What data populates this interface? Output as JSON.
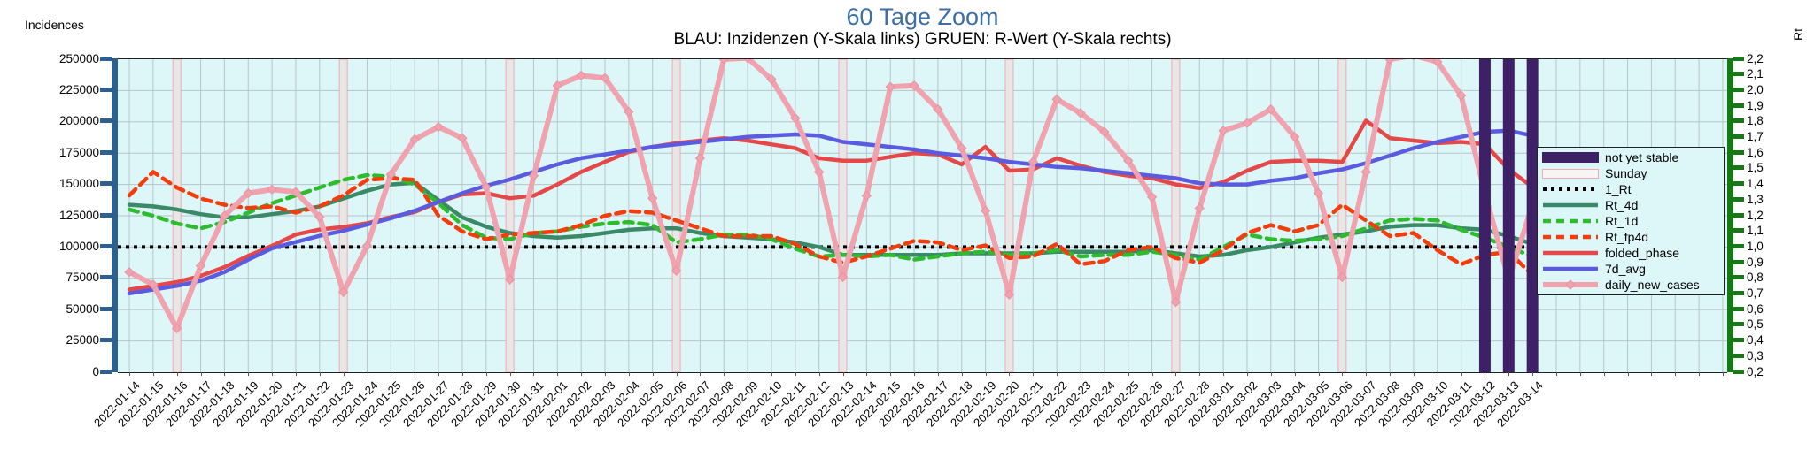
{
  "header": {
    "title": "60 Tage Zoom",
    "subtitle": "BLAU: Inzidenzen (Y-Skala links)    GRUEN: R-Wert (Y-Skala rechts)"
  },
  "colors": {
    "title": "#3c6fa5",
    "plot_bg": "#ddf6f8",
    "grid": "#b6c6ca",
    "left_axis": "#2d5f8f",
    "right_axis": "#157a15",
    "not_yet_stable": "#3e2066",
    "sunday_fill": "#e9e6e6",
    "sunday_border": "#efaab4",
    "one_rt": "#000000",
    "rt_4d": "#3a8a68",
    "rt_1d": "#2ebb2e",
    "rt_fp4d": "#f23d0d",
    "folded_phase": "#e54848",
    "sevend_avg": "#5b5be0",
    "daily_new_cases": "#f0a2ae"
  },
  "axes": {
    "left_title": "Incidences",
    "right_title": "Rt",
    "left_ticks": [
      "0",
      "25000",
      "50000",
      "75000",
      "100000",
      "125000",
      "150000",
      "175000",
      "200000",
      "225000",
      "250000"
    ],
    "right_ticks": [
      "0,2",
      "0,3",
      "0,4",
      "0,5",
      "0,6",
      "0,7",
      "0,8",
      "0,9",
      "1,0",
      "1,1",
      "1,2",
      "1,3",
      "1,4",
      "1,5",
      "1,6",
      "1,7",
      "1,8",
      "1,9",
      "2,0",
      "2,1",
      "2,2"
    ]
  },
  "legend": {
    "items": [
      {
        "key": "not_yet_stable",
        "label": "not yet stable",
        "swatch": "band",
        "color": "#3e2066"
      },
      {
        "key": "sunday",
        "label": "Sunday",
        "swatch": "band-outline",
        "color": "#e9e6e6",
        "border": "#efaab4"
      },
      {
        "key": "one_rt",
        "label": "1_Rt",
        "swatch": "dotted",
        "color": "#000000"
      },
      {
        "key": "rt_4d",
        "label": "Rt_4d",
        "swatch": "line",
        "color": "#3a8a68"
      },
      {
        "key": "rt_1d",
        "label": "Rt_1d",
        "swatch": "dashed",
        "color": "#2ebb2e"
      },
      {
        "key": "rt_fp4d",
        "label": "Rt_fp4d",
        "swatch": "dashed",
        "color": "#f23d0d"
      },
      {
        "key": "folded_phase",
        "label": "folded_phase",
        "swatch": "line",
        "color": "#e54848"
      },
      {
        "key": "sevend_avg",
        "label": "7d_avg",
        "swatch": "line",
        "color": "#5b5be0"
      },
      {
        "key": "daily_new_cases",
        "label": "daily_new_cases",
        "swatch": "line-marker",
        "color": "#f0a2ae"
      }
    ]
  },
  "chart_data": {
    "type": "line",
    "title": "60 Tage Zoom",
    "subtitle": "BLAU: Inzidenzen (Y-Skala links)    GRUEN: R-Wert (Y-Skala rechts)",
    "ylabel_left": "Incidences",
    "ylabel_right": "Rt",
    "ylim_left": [
      0,
      250000
    ],
    "ylim_right": [
      0.2,
      2.2
    ],
    "grid": true,
    "legend_position": "right",
    "x": [
      "2022-01-14",
      "2022-01-15",
      "2022-01-16",
      "2022-01-17",
      "2022-01-18",
      "2022-01-19",
      "2022-01-20",
      "2022-01-21",
      "2022-01-22",
      "2022-01-23",
      "2022-01-24",
      "2022-01-25",
      "2022-01-26",
      "2022-01-27",
      "2022-01-28",
      "2022-01-29",
      "2022-01-30",
      "2022-01-31",
      "2022-02-01",
      "2022-02-02",
      "2022-02-03",
      "2022-02-04",
      "2022-02-05",
      "2022-02-06",
      "2022-02-07",
      "2022-02-08",
      "2022-02-09",
      "2022-02-10",
      "2022-02-11",
      "2022-02-12",
      "2022-02-13",
      "2022-02-14",
      "2022-02-15",
      "2022-02-16",
      "2022-02-17",
      "2022-02-18",
      "2022-02-19",
      "2022-02-20",
      "2022-02-21",
      "2022-02-22",
      "2022-02-23",
      "2022-02-24",
      "2022-02-25",
      "2022-02-26",
      "2022-02-27",
      "2022-02-28",
      "2022-03-01",
      "2022-03-02",
      "2022-03-03",
      "2022-03-04",
      "2022-03-05",
      "2022-03-06",
      "2022-03-07",
      "2022-03-08",
      "2022-03-09",
      "2022-03-10",
      "2022-03-11",
      "2022-03-12",
      "2022-03-13",
      "2022-03-14"
    ],
    "sunday_band_indices": [
      2,
      9,
      16,
      23,
      30,
      37,
      44,
      51,
      58
    ],
    "not_yet_stable_indices": [
      57,
      58,
      59
    ],
    "extra_unlabeled_day_ticks": 8,
    "series": [
      {
        "name": "1_Rt",
        "axis": "right",
        "style": "dotted",
        "color": "#000000",
        "constant": 1.0
      },
      {
        "name": "Rt_4d",
        "axis": "right",
        "style": "solid",
        "color": "#3a8a68",
        "values": [
          1.27,
          1.26,
          1.24,
          1.21,
          1.19,
          1.19,
          1.21,
          1.23,
          1.26,
          1.31,
          1.36,
          1.4,
          1.41,
          1.3,
          1.19,
          1.13,
          1.09,
          1.07,
          1.06,
          1.07,
          1.09,
          1.11,
          1.12,
          1.12,
          1.09,
          1.07,
          1.06,
          1.05,
          1.03,
          1.0,
          0.95,
          0.95,
          0.95,
          0.95,
          0.95,
          0.96,
          0.96,
          0.96,
          0.96,
          0.97,
          0.97,
          0.97,
          0.97,
          0.98,
          0.96,
          0.94,
          0.95,
          0.98,
          1.0,
          1.03,
          1.06,
          1.08,
          1.1,
          1.13,
          1.14,
          1.14,
          1.12,
          1.11,
          1.07,
          1.02
        ]
      },
      {
        "name": "Rt_1d",
        "axis": "right",
        "style": "dashed",
        "color": "#2ebb2e",
        "values": [
          1.24,
          1.2,
          1.15,
          1.12,
          1.16,
          1.22,
          1.28,
          1.33,
          1.38,
          1.43,
          1.46,
          1.45,
          1.4,
          1.28,
          1.14,
          1.06,
          1.05,
          1.09,
          1.1,
          1.13,
          1.15,
          1.16,
          1.14,
          1.03,
          1.05,
          1.08,
          1.08,
          1.05,
          0.99,
          0.94,
          0.95,
          0.94,
          0.95,
          0.92,
          0.94,
          0.96,
          0.97,
          0.95,
          0.96,
          0.98,
          0.94,
          0.95,
          0.95,
          0.97,
          0.95,
          0.92,
          1.0,
          1.08,
          1.05,
          1.04,
          1.05,
          1.07,
          1.12,
          1.17,
          1.18,
          1.17,
          1.11,
          1.06,
          1.0,
          0.94
        ]
      },
      {
        "name": "Rt_fp4d",
        "axis": "right",
        "style": "dashed",
        "color": "#f23d0d",
        "values": [
          1.33,
          1.48,
          1.38,
          1.31,
          1.27,
          1.25,
          1.26,
          1.22,
          1.26,
          1.33,
          1.43,
          1.44,
          1.43,
          1.2,
          1.1,
          1.05,
          1.08,
          1.09,
          1.1,
          1.14,
          1.2,
          1.23,
          1.22,
          1.17,
          1.12,
          1.07,
          1.07,
          1.07,
          1.02,
          0.94,
          0.9,
          0.94,
          0.99,
          1.04,
          1.03,
          0.98,
          1.01,
          0.93,
          0.94,
          1.02,
          0.89,
          0.91,
          0.98,
          1.0,
          0.93,
          0.9,
          0.98,
          1.09,
          1.14,
          1.1,
          1.14,
          1.27,
          1.17,
          1.07,
          1.09,
          0.98,
          0.89,
          0.95,
          0.97,
          0.82
        ]
      },
      {
        "name": "folded_phase",
        "axis": "left",
        "style": "solid",
        "color": "#e54848",
        "values": [
          66000,
          69000,
          72000,
          77000,
          84000,
          93000,
          101000,
          110000,
          114000,
          116000,
          119000,
          124000,
          128000,
          136000,
          142000,
          143000,
          139000,
          141000,
          150000,
          160000,
          168000,
          176000,
          180000,
          183000,
          185000,
          187000,
          185000,
          182000,
          179000,
          171000,
          169000,
          169000,
          172000,
          175000,
          174000,
          166000,
          180000,
          161000,
          162000,
          171000,
          165000,
          160000,
          157000,
          155000,
          150000,
          147000,
          152000,
          161000,
          168000,
          169000,
          169000,
          168000,
          201000,
          187000,
          185000,
          183000,
          184000,
          182000,
          162000,
          148000
        ]
      },
      {
        "name": "7d_avg",
        "axis": "left",
        "style": "solid",
        "color": "#5b5be0",
        "values": [
          63000,
          66000,
          69000,
          73000,
          80000,
          90000,
          99000,
          104000,
          109000,
          113000,
          118000,
          123000,
          129000,
          136000,
          143000,
          149000,
          154000,
          160000,
          166000,
          171000,
          174000,
          177000,
          180000,
          182000,
          184000,
          186000,
          188000,
          189000,
          190000,
          189000,
          184000,
          182000,
          180000,
          178000,
          175000,
          173000,
          171000,
          168000,
          166000,
          164000,
          163000,
          161000,
          159000,
          157000,
          155000,
          151000,
          150000,
          150000,
          153000,
          155000,
          159000,
          162000,
          167000,
          173000,
          179000,
          184000,
          188000,
          192000,
          193000,
          189000
        ]
      },
      {
        "name": "daily_new_cases",
        "axis": "left",
        "style": "solid-marker",
        "color": "#f0a2ae",
        "values": [
          80000,
          70000,
          35000,
          85000,
          125000,
          143000,
          146000,
          144000,
          124000,
          64000,
          101000,
          158000,
          186000,
          196000,
          187000,
          148000,
          74000,
          157000,
          229000,
          237000,
          235000,
          208000,
          139000,
          81000,
          171000,
          250000,
          251000,
          234000,
          203000,
          160000,
          76000,
          141000,
          228000,
          229000,
          210000,
          179000,
          129000,
          62000,
          168000,
          218000,
          207000,
          192000,
          169000,
          140000,
          56000,
          131000,
          193000,
          199000,
          210000,
          188000,
          143000,
          76000,
          160000,
          250000,
          253000,
          248000,
          221000,
          143000,
          74000,
          134000
        ]
      }
    ]
  }
}
